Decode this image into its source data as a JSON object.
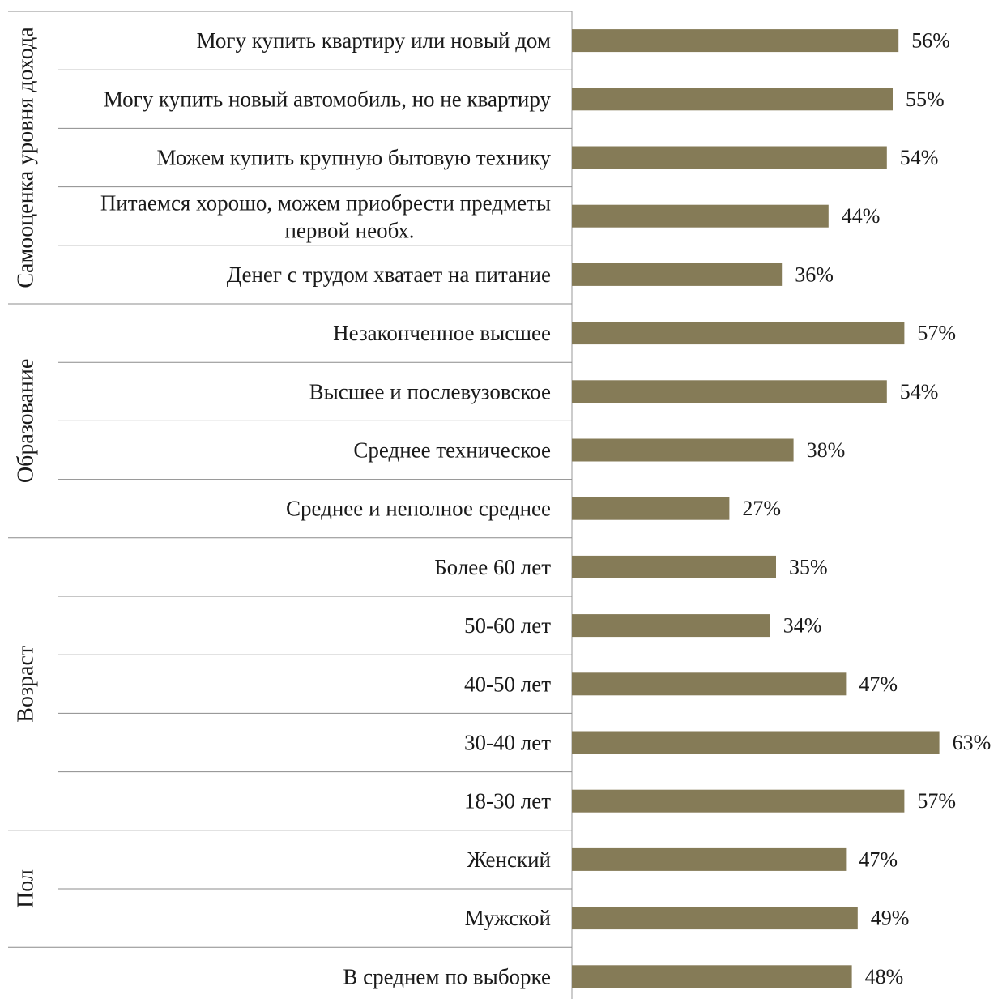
{
  "chart_data": {
    "type": "bar",
    "orientation": "horizontal",
    "bar_color": "#857b57",
    "grid": false,
    "legend": "none",
    "value_format": "{v}%",
    "xlim": [
      0,
      63
    ],
    "groups": [
      {
        "name": "Самооценка уровня дохода",
        "size": 5
      },
      {
        "name": "Образование",
        "size": 4
      },
      {
        "name": "Возраст",
        "size": 5
      },
      {
        "name": "Пол",
        "size": 2
      },
      {
        "name": "",
        "size": 1
      }
    ],
    "categories": [
      "Могу купить квартиру или новый дом",
      "Могу купить новый автомобиль, но не квартиру",
      "Можем купить крупную бытовую технику",
      "Питаемся хорошо, можем приобрести предметы первой необх.",
      "Денег с трудом хватает на питание",
      "Незаконченное высшее",
      "Высшее и послевузовское",
      "Среднее техническое",
      "Среднее и неполное среднее",
      "Более 60 лет",
      "50-60 лет",
      "40-50 лет",
      "30-40 лет",
      "18-30 лет",
      "Женский",
      "Мужской",
      "В среднем по выборке"
    ],
    "values": [
      56,
      55,
      54,
      44,
      36,
      57,
      54,
      38,
      27,
      35,
      34,
      47,
      63,
      57,
      47,
      49,
      48
    ],
    "value_labels": [
      "56%",
      "55%",
      "54%",
      "44%",
      "36%",
      "57%",
      "54%",
      "38%",
      "27%",
      "35%",
      "34%",
      "47%",
      "63%",
      "57%",
      "47%",
      "49%",
      "48%"
    ]
  }
}
